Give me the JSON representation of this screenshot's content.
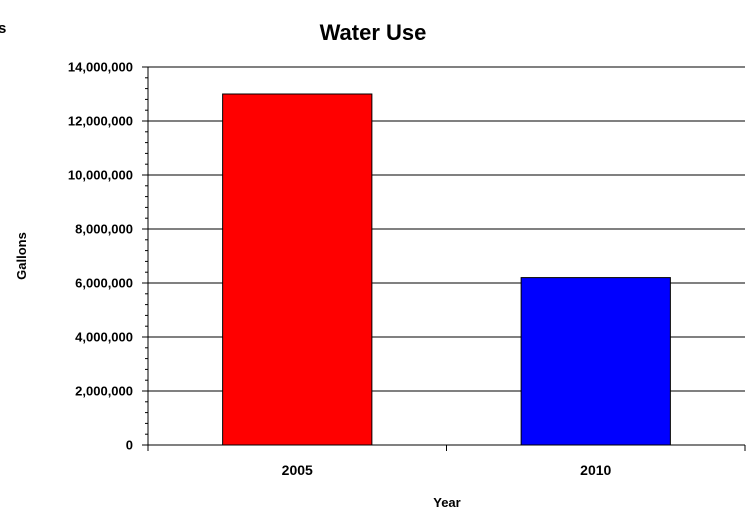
{
  "chart_data": {
    "type": "bar",
    "title": "Water Use",
    "xlabel": "Year",
    "ylabel": "Gallons",
    "categories": [
      "2005",
      "2010"
    ],
    "values": [
      13000000,
      6200000
    ],
    "bar_colors": [
      "#ff0000",
      "#0000ff"
    ],
    "ylim": [
      0,
      14000000
    ],
    "yticks": [
      "0",
      "2,000,000",
      "4,000,000",
      "6,000,000",
      "8,000,000",
      "10,000,000",
      "12,000,000",
      "14,000,000"
    ],
    "grid": true,
    "legend": "none"
  },
  "edge_fragment": "s"
}
